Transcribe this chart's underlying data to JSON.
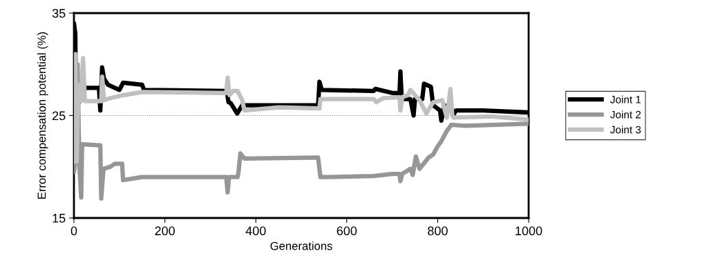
{
  "chart_data": {
    "type": "line",
    "xlabel": "Generations",
    "ylabel": "Error compensation potential (%)",
    "xlim": [
      0,
      1000
    ],
    "xticks": [
      0,
      200,
      400,
      600,
      800,
      1000
    ],
    "ylim": [
      15,
      35
    ],
    "yticks": [
      15,
      25,
      35
    ],
    "grid": false,
    "legend": "right",
    "marker": "none",
    "line_style": "solid",
    "ref_lines": [
      {
        "axis": "y",
        "value": 25,
        "color": "#808080",
        "line_style": "dotted"
      }
    ],
    "series": [
      {
        "name": "Joint 1",
        "color": "#000000",
        "x": [
          0,
          3,
          5,
          8,
          25,
          30,
          55,
          58,
          62,
          66,
          75,
          100,
          108,
          150,
          154,
          336,
          340,
          345,
          359,
          370,
          537,
          540,
          545,
          659,
          663,
          700,
          716,
          718,
          721,
          740,
          747,
          750,
          766,
          770,
          785,
          790,
          805,
          808,
          815,
          830,
          834,
          840,
          900,
          1000
        ],
        "values": [
          34,
          33,
          21,
          26,
          27.7,
          27.7,
          27.7,
          25.5,
          29.7,
          28.6,
          28,
          27.5,
          28.2,
          28,
          27.5,
          27.4,
          26.3,
          26.2,
          25.2,
          26,
          26,
          28.3,
          27.5,
          27.4,
          27.6,
          27.2,
          27.2,
          29.3,
          26.6,
          26.6,
          25,
          26.6,
          26.6,
          28.1,
          27.8,
          26,
          25.5,
          24.5,
          26,
          25.5,
          25,
          25.5,
          25.5,
          25.3
        ]
      },
      {
        "name": "Joint 2",
        "color": "#969696",
        "x": [
          0,
          5,
          8,
          12,
          16,
          18,
          55,
          58,
          60,
          65,
          80,
          90,
          106,
          108,
          150,
          335,
          338,
          341,
          360,
          362,
          366,
          375,
          537,
          542,
          560,
          660,
          700,
          716,
          718,
          722,
          740,
          745,
          752,
          760,
          780,
          790,
          800,
          808,
          820,
          830,
          860,
          1000
        ],
        "values": [
          19.5,
          21,
          30,
          20,
          17,
          22.2,
          22.1,
          22.1,
          16.9,
          19.8,
          20,
          20.3,
          20.3,
          18.7,
          19,
          19,
          17.5,
          19,
          19,
          19.5,
          21.3,
          20.8,
          20.9,
          19,
          19,
          19.1,
          19.3,
          19.3,
          18.6,
          19.3,
          19.8,
          19.2,
          21,
          19.8,
          20.9,
          21.2,
          22,
          22.5,
          23.5,
          24.1,
          24,
          24.2
        ]
      },
      {
        "name": "Joint 3",
        "color": "#c0c0c0",
        "x": [
          0,
          3,
          6,
          10,
          15,
          20,
          24,
          60,
          62,
          66,
          80,
          110,
          150,
          335,
          338,
          342,
          350,
          360,
          370,
          375,
          450,
          540,
          542,
          660,
          665,
          680,
          716,
          718,
          722,
          735,
          740,
          760,
          775,
          790,
          810,
          820,
          828,
          832,
          835,
          920,
          1000
        ],
        "values": [
          20.5,
          31,
          20.5,
          28,
          26.4,
          30.6,
          26.4,
          26.4,
          28.8,
          26.5,
          26.7,
          27,
          27.3,
          27.2,
          28.7,
          27,
          27.4,
          27.4,
          26.5,
          25.5,
          25.8,
          25.7,
          26.6,
          26.6,
          26.3,
          26.7,
          26.8,
          25.5,
          26.8,
          27,
          27.5,
          26.5,
          25.2,
          26.3,
          26.5,
          24.8,
          27.6,
          25,
          24.8,
          24.9,
          24.6
        ]
      }
    ]
  }
}
